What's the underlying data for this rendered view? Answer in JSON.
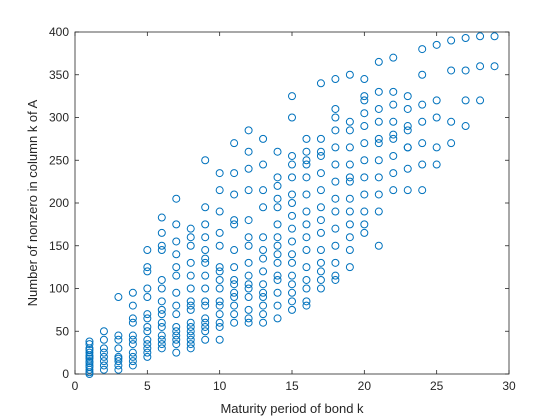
{
  "chart_data": {
    "type": "scatter",
    "xlabel": "Maturity period of bond k",
    "ylabel": "Number of nonzero in column k of A",
    "color": "#0072bd",
    "xlim": [
      0,
      30
    ],
    "ylim": [
      0,
      400
    ],
    "xticks": [
      0,
      5,
      10,
      15,
      20,
      25,
      30
    ],
    "yticks": [
      0,
      50,
      100,
      150,
      200,
      250,
      300,
      350,
      400
    ],
    "x": [
      1,
      1,
      1,
      1,
      1,
      1,
      1,
      1,
      1,
      1,
      1,
      1,
      1,
      1,
      1,
      2,
      2,
      2,
      2,
      2,
      2,
      2,
      2,
      3,
      3,
      3,
      3,
      3,
      3,
      3,
      3,
      3,
      4,
      4,
      4,
      4,
      4,
      4,
      4,
      4,
      4,
      4,
      4,
      5,
      5,
      5,
      5,
      5,
      5,
      5,
      5,
      5,
      5,
      5,
      5,
      5,
      5,
      6,
      6,
      6,
      6,
      6,
      6,
      6,
      6,
      6,
      6,
      6,
      6,
      6,
      6,
      6,
      7,
      7,
      7,
      7,
      7,
      7,
      7,
      7,
      7,
      7,
      7,
      7,
      7,
      7,
      7,
      8,
      8,
      8,
      8,
      8,
      8,
      8,
      8,
      8,
      8,
      8,
      8,
      8,
      8,
      8,
      8,
      9,
      9,
      9,
      9,
      9,
      9,
      9,
      9,
      9,
      9,
      9,
      9,
      9,
      9,
      9,
      9,
      10,
      10,
      10,
      10,
      10,
      10,
      10,
      10,
      10,
      10,
      10,
      10,
      10,
      10,
      10,
      11,
      11,
      11,
      11,
      11,
      11,
      11,
      11,
      11,
      11,
      11,
      11,
      11,
      11,
      12,
      12,
      12,
      12,
      12,
      12,
      12,
      12,
      12,
      12,
      12,
      12,
      12,
      12,
      12,
      13,
      13,
      13,
      13,
      13,
      13,
      13,
      13,
      13,
      13,
      13,
      13,
      13,
      13,
      14,
      14,
      14,
      14,
      14,
      14,
      14,
      14,
      14,
      14,
      14,
      14,
      14,
      14,
      14,
      15,
      15,
      15,
      15,
      15,
      15,
      15,
      15,
      15,
      15,
      15,
      15,
      15,
      15,
      15,
      15,
      15,
      16,
      16,
      16,
      16,
      16,
      16,
      16,
      16,
      16,
      16,
      16,
      16,
      16,
      16,
      16,
      17,
      17,
      17,
      17,
      17,
      17,
      17,
      17,
      17,
      17,
      17,
      17,
      17,
      17,
      18,
      18,
      18,
      18,
      18,
      18,
      18,
      18,
      18,
      18,
      18,
      18,
      18,
      18,
      19,
      19,
      19,
      19,
      19,
      19,
      19,
      19,
      19,
      19,
      19,
      19,
      19,
      20,
      20,
      20,
      20,
      20,
      20,
      20,
      20,
      20,
      20,
      20,
      20,
      21,
      21,
      21,
      21,
      21,
      21,
      21,
      21,
      21,
      21,
      21,
      22,
      22,
      22,
      22,
      22,
      22,
      22,
      22,
      22,
      23,
      23,
      23,
      23,
      23,
      23,
      23,
      23,
      24,
      24,
      24,
      24,
      24,
      24,
      24,
      25,
      25,
      25,
      25,
      25,
      26,
      26,
      26,
      26,
      27,
      27,
      27,
      27,
      28,
      28,
      28,
      29,
      29
    ],
    "y": [
      0,
      2,
      5,
      8,
      10,
      13,
      15,
      18,
      20,
      22,
      25,
      28,
      30,
      35,
      38,
      5,
      10,
      15,
      20,
      25,
      30,
      40,
      50,
      5,
      10,
      15,
      18,
      20,
      30,
      40,
      45,
      90,
      10,
      15,
      20,
      25,
      35,
      40,
      45,
      60,
      65,
      80,
      95,
      20,
      25,
      30,
      35,
      40,
      50,
      55,
      65,
      70,
      90,
      100,
      120,
      125,
      145,
      30,
      35,
      40,
      45,
      55,
      60,
      70,
      75,
      85,
      100,
      110,
      145,
      150,
      165,
      183,
      25,
      35,
      40,
      45,
      50,
      55,
      70,
      80,
      95,
      115,
      125,
      140,
      155,
      175,
      205,
      30,
      35,
      40,
      45,
      50,
      55,
      60,
      75,
      80,
      85,
      100,
      115,
      130,
      150,
      160,
      170,
      40,
      50,
      55,
      60,
      65,
      80,
      85,
      100,
      115,
      130,
      135,
      145,
      160,
      175,
      195,
      250,
      40,
      55,
      60,
      70,
      80,
      85,
      100,
      110,
      120,
      125,
      150,
      165,
      190,
      215,
      235,
      60,
      70,
      80,
      90,
      95,
      105,
      110,
      125,
      145,
      175,
      180,
      210,
      235,
      270,
      60,
      65,
      75,
      90,
      100,
      105,
      115,
      130,
      150,
      160,
      180,
      215,
      240,
      260,
      285,
      60,
      70,
      80,
      90,
      95,
      105,
      120,
      135,
      145,
      160,
      195,
      215,
      245,
      275,
      65,
      80,
      95,
      110,
      115,
      130,
      140,
      150,
      160,
      175,
      195,
      205,
      220,
      230,
      260,
      75,
      85,
      95,
      105,
      115,
      130,
      140,
      155,
      170,
      185,
      200,
      210,
      230,
      245,
      255,
      300,
      325,
      80,
      85,
      100,
      110,
      125,
      145,
      160,
      175,
      190,
      210,
      230,
      245,
      250,
      260,
      275,
      100,
      110,
      120,
      130,
      145,
      165,
      180,
      195,
      215,
      235,
      255,
      260,
      275,
      340,
      110,
      115,
      130,
      150,
      170,
      190,
      205,
      225,
      245,
      265,
      285,
      300,
      310,
      345,
      125,
      145,
      160,
      175,
      190,
      205,
      225,
      230,
      245,
      265,
      285,
      295,
      350,
      165,
      175,
      190,
      210,
      230,
      250,
      270,
      290,
      305,
      320,
      325,
      345,
      150,
      190,
      210,
      230,
      250,
      270,
      275,
      295,
      310,
      330,
      365,
      215,
      235,
      255,
      275,
      280,
      295,
      315,
      330,
      370,
      215,
      240,
      265,
      265,
      285,
      290,
      310,
      325,
      215,
      245,
      270,
      295,
      315,
      350,
      380,
      245,
      265,
      300,
      320,
      385,
      270,
      295,
      355,
      390,
      290,
      320,
      355,
      393,
      320,
      360,
      395,
      360,
      395
    ]
  }
}
